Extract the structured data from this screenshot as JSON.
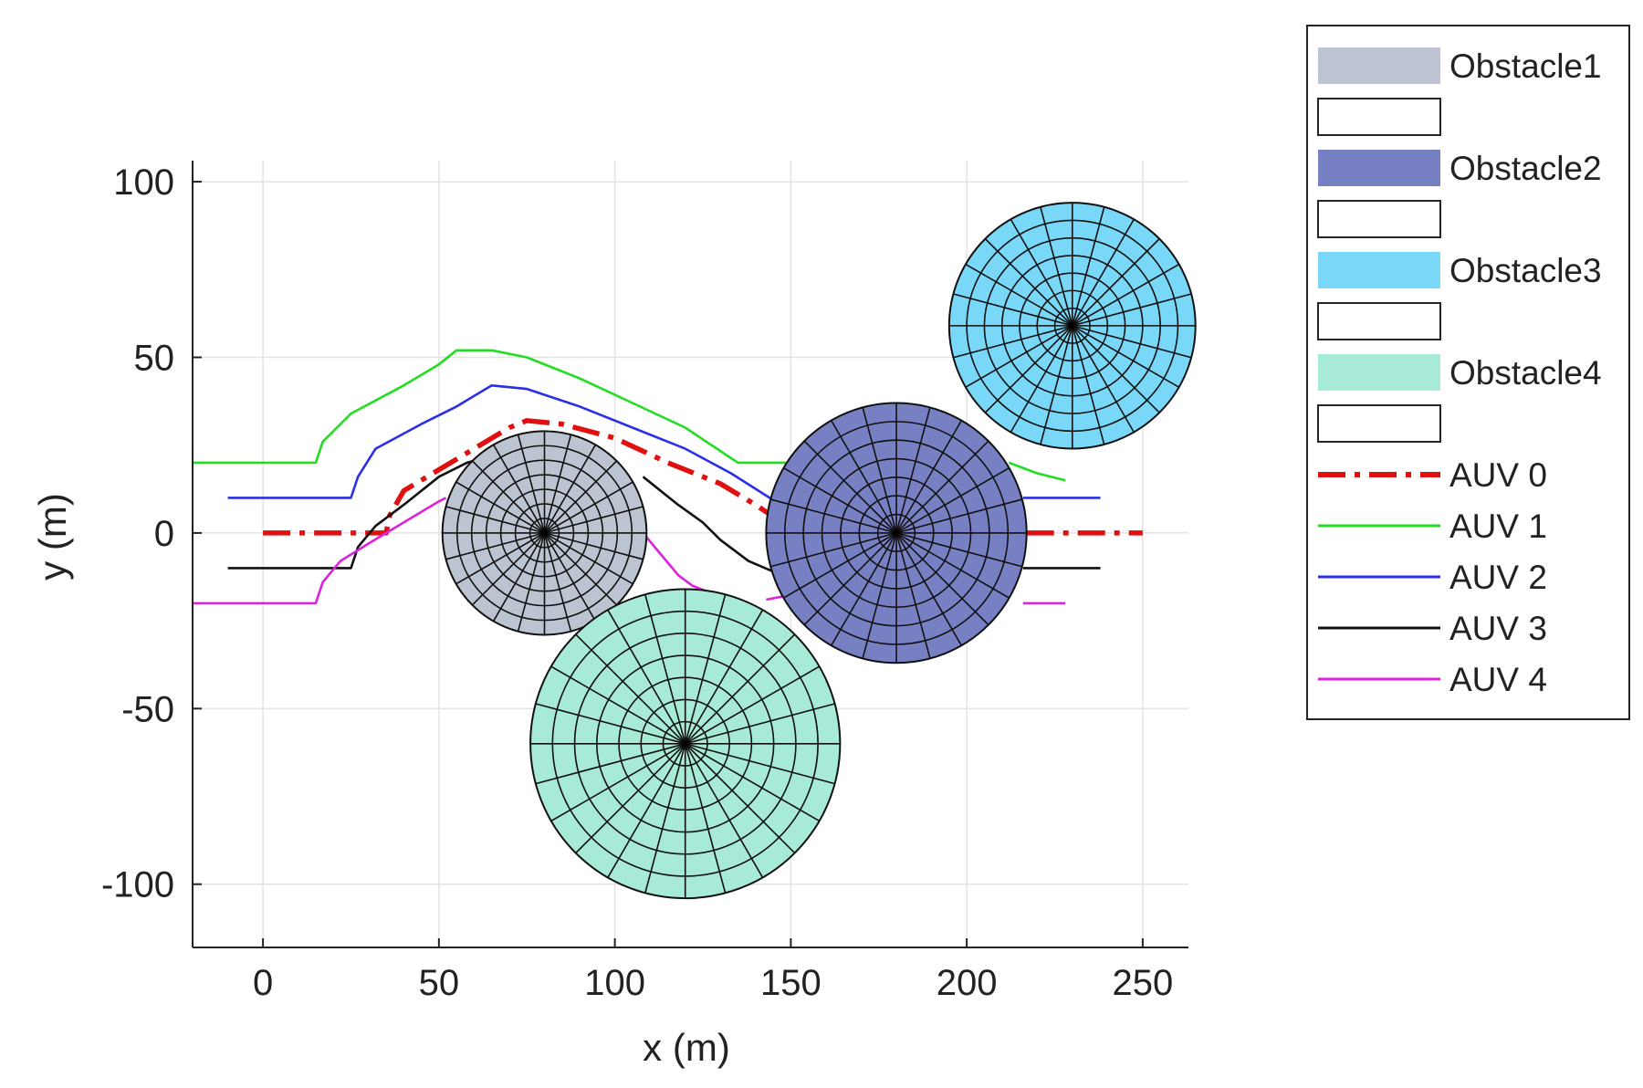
{
  "chart_data": {
    "type": "line",
    "title": "",
    "xlabel": "x (m)",
    "ylabel": "y (m)",
    "xlim": [
      -20,
      263
    ],
    "ylim": [
      -118,
      106
    ],
    "xticks": [
      0,
      50,
      100,
      150,
      200,
      250
    ],
    "yticks": [
      100,
      50,
      0,
      -50,
      -100
    ],
    "grid": true,
    "legend_position": "outside-right-top",
    "obstacles": [
      {
        "name": "Obstacle1",
        "center": [
          80,
          0
        ],
        "radius": 29,
        "color": "#bcc4d2"
      },
      {
        "name": "Obstacle2",
        "center": [
          180,
          0
        ],
        "radius": 37,
        "color": "#7880c4"
      },
      {
        "name": "Obstacle3",
        "center": [
          230,
          59
        ],
        "radius": 35,
        "color": "#79d8f7"
      },
      {
        "name": "Obstacle4",
        "center": [
          120,
          -60
        ],
        "radius": 44,
        "color": "#a8ead8"
      }
    ],
    "series": [
      {
        "name": "AUV 0",
        "color": "#e01010",
        "dash": "dashdot",
        "points": [
          [
            0,
            0
          ],
          [
            35,
            0
          ],
          [
            36,
            5
          ],
          [
            40,
            12
          ],
          [
            50,
            18
          ],
          [
            60,
            24
          ],
          [
            70,
            30
          ],
          [
            75,
            32
          ],
          [
            85,
            31
          ],
          [
            100,
            27
          ],
          [
            115,
            20
          ],
          [
            130,
            14
          ],
          [
            140,
            8
          ],
          [
            146,
            4
          ]
        ]
      },
      {
        "name": "AUV 0",
        "color": "#e01010",
        "dash": "dashdot",
        "points": [
          [
            217,
            0
          ],
          [
            225,
            0
          ],
          [
            250,
            0
          ]
        ]
      },
      {
        "name": "AUV 1",
        "color": "#22dd22",
        "dash": "solid",
        "points": [
          [
            -20,
            20
          ],
          [
            15,
            20
          ],
          [
            17,
            26
          ],
          [
            25,
            34
          ],
          [
            40,
            42
          ],
          [
            50,
            48
          ],
          [
            55,
            52
          ],
          [
            65,
            52
          ],
          [
            75,
            50
          ],
          [
            90,
            44
          ],
          [
            105,
            37
          ],
          [
            120,
            30
          ],
          [
            132,
            22
          ],
          [
            135,
            20
          ],
          [
            150,
            20
          ],
          [
            160,
            20
          ],
          [
            170,
            20
          ]
        ]
      },
      {
        "name": "AUV 1",
        "color": "#22dd22",
        "dash": "solid",
        "points": [
          [
            212,
            20
          ],
          [
            220,
            17
          ],
          [
            228,
            15
          ]
        ]
      },
      {
        "name": "AUV 2",
        "color": "#2a30e8",
        "dash": "solid",
        "points": [
          [
            -10,
            10
          ],
          [
            25,
            10
          ],
          [
            27,
            16
          ],
          [
            32,
            24
          ],
          [
            45,
            31
          ],
          [
            55,
            36
          ],
          [
            65,
            42
          ],
          [
            75,
            41
          ],
          [
            90,
            36
          ],
          [
            105,
            30
          ],
          [
            120,
            24
          ],
          [
            133,
            17
          ],
          [
            144,
            10
          ],
          [
            146,
            9
          ]
        ]
      },
      {
        "name": "AUV 2",
        "color": "#2a30e8",
        "dash": "solid",
        "points": [
          [
            216,
            10
          ],
          [
            238,
            10
          ]
        ]
      },
      {
        "name": "AUV 3",
        "color": "#111111",
        "dash": "solid",
        "points": [
          [
            -10,
            -10
          ],
          [
            25,
            -10
          ],
          [
            27,
            -4
          ],
          [
            32,
            2
          ],
          [
            40,
            8
          ],
          [
            50,
            16
          ],
          [
            58,
            20
          ],
          [
            65,
            22
          ],
          [
            70,
            23
          ]
        ]
      },
      {
        "name": "AUV 3",
        "color": "#111111",
        "dash": "solid",
        "points": [
          [
            108,
            16
          ],
          [
            118,
            8
          ],
          [
            125,
            3
          ],
          [
            130,
            -2
          ],
          [
            138,
            -8
          ],
          [
            145,
            -11
          ]
        ]
      },
      {
        "name": "AUV 3",
        "color": "#111111",
        "dash": "solid",
        "points": [
          [
            216,
            -10
          ],
          [
            238,
            -10
          ]
        ]
      },
      {
        "name": "AUV 4",
        "color": "#dd22dd",
        "dash": "solid",
        "points": [
          [
            -20,
            -20
          ],
          [
            15,
            -20
          ],
          [
            17,
            -14
          ],
          [
            22,
            -8
          ],
          [
            30,
            -3
          ],
          [
            40,
            3
          ],
          [
            50,
            9
          ],
          [
            52,
            10
          ]
        ]
      },
      {
        "name": "AUV 4",
        "color": "#dd22dd",
        "dash": "solid",
        "points": [
          [
            108,
            0
          ],
          [
            113,
            -6
          ],
          [
            118,
            -12
          ],
          [
            122,
            -15
          ],
          [
            127,
            -17
          ]
        ]
      },
      {
        "name": "AUV 4",
        "color": "#dd22dd",
        "dash": "solid",
        "points": [
          [
            143,
            -19
          ],
          [
            148,
            -18
          ]
        ]
      },
      {
        "name": "AUV 4",
        "color": "#dd22dd",
        "dash": "solid",
        "points": [
          [
            216,
            -20
          ],
          [
            228,
            -20
          ]
        ]
      }
    ],
    "legend": [
      {
        "label": "Obstacle1",
        "kind": "patch",
        "color": "#bcc4d2"
      },
      {
        "label": "",
        "kind": "box"
      },
      {
        "label": "Obstacle2",
        "kind": "patch",
        "color": "#7880c4"
      },
      {
        "label": "",
        "kind": "box"
      },
      {
        "label": "Obstacle3",
        "kind": "patch",
        "color": "#79d8f7"
      },
      {
        "label": "",
        "kind": "box"
      },
      {
        "label": "Obstacle4",
        "kind": "patch",
        "color": "#a8ead8"
      },
      {
        "label": "",
        "kind": "box"
      },
      {
        "label": "AUV 0",
        "kind": "line",
        "color": "#e01010",
        "dash": "dashdot"
      },
      {
        "label": "AUV 1",
        "kind": "line",
        "color": "#22dd22",
        "dash": "solid"
      },
      {
        "label": "AUV 2",
        "kind": "line",
        "color": "#2a30e8",
        "dash": "solid"
      },
      {
        "label": "AUV 3",
        "kind": "line",
        "color": "#111111",
        "dash": "solid"
      },
      {
        "label": "AUV 4",
        "kind": "line",
        "color": "#dd22dd",
        "dash": "solid"
      }
    ]
  }
}
